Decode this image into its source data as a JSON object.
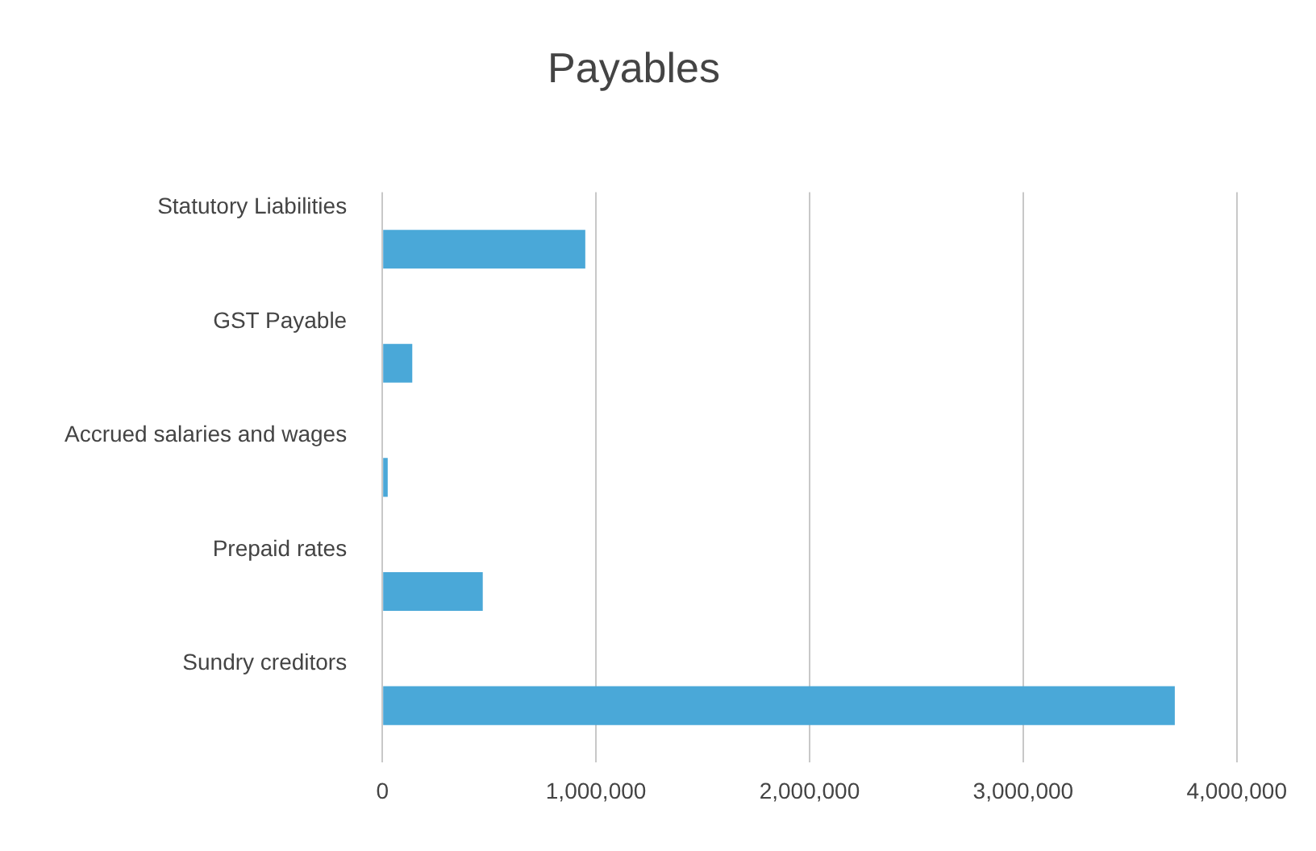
{
  "chart_data": {
    "type": "bar",
    "orientation": "horizontal",
    "title": "Payables",
    "categories": [
      "Statutory Liabilities",
      "GST Payable",
      "Accrued salaries and wages",
      "Prepaid rates",
      "Sundry creditors"
    ],
    "values": [
      950000,
      140000,
      25000,
      470000,
      3710000
    ],
    "color": "#4aa8d8",
    "xlim": [
      0,
      4000000
    ],
    "xticks": [
      {
        "value": 0,
        "label": "0"
      },
      {
        "value": 1000000,
        "label": "1,000,000"
      },
      {
        "value": 2000000,
        "label": "2,000,000"
      },
      {
        "value": 3000000,
        "label": "3,000,000"
      },
      {
        "value": 4000000,
        "label": "4,000,000"
      }
    ],
    "grid": "x"
  }
}
